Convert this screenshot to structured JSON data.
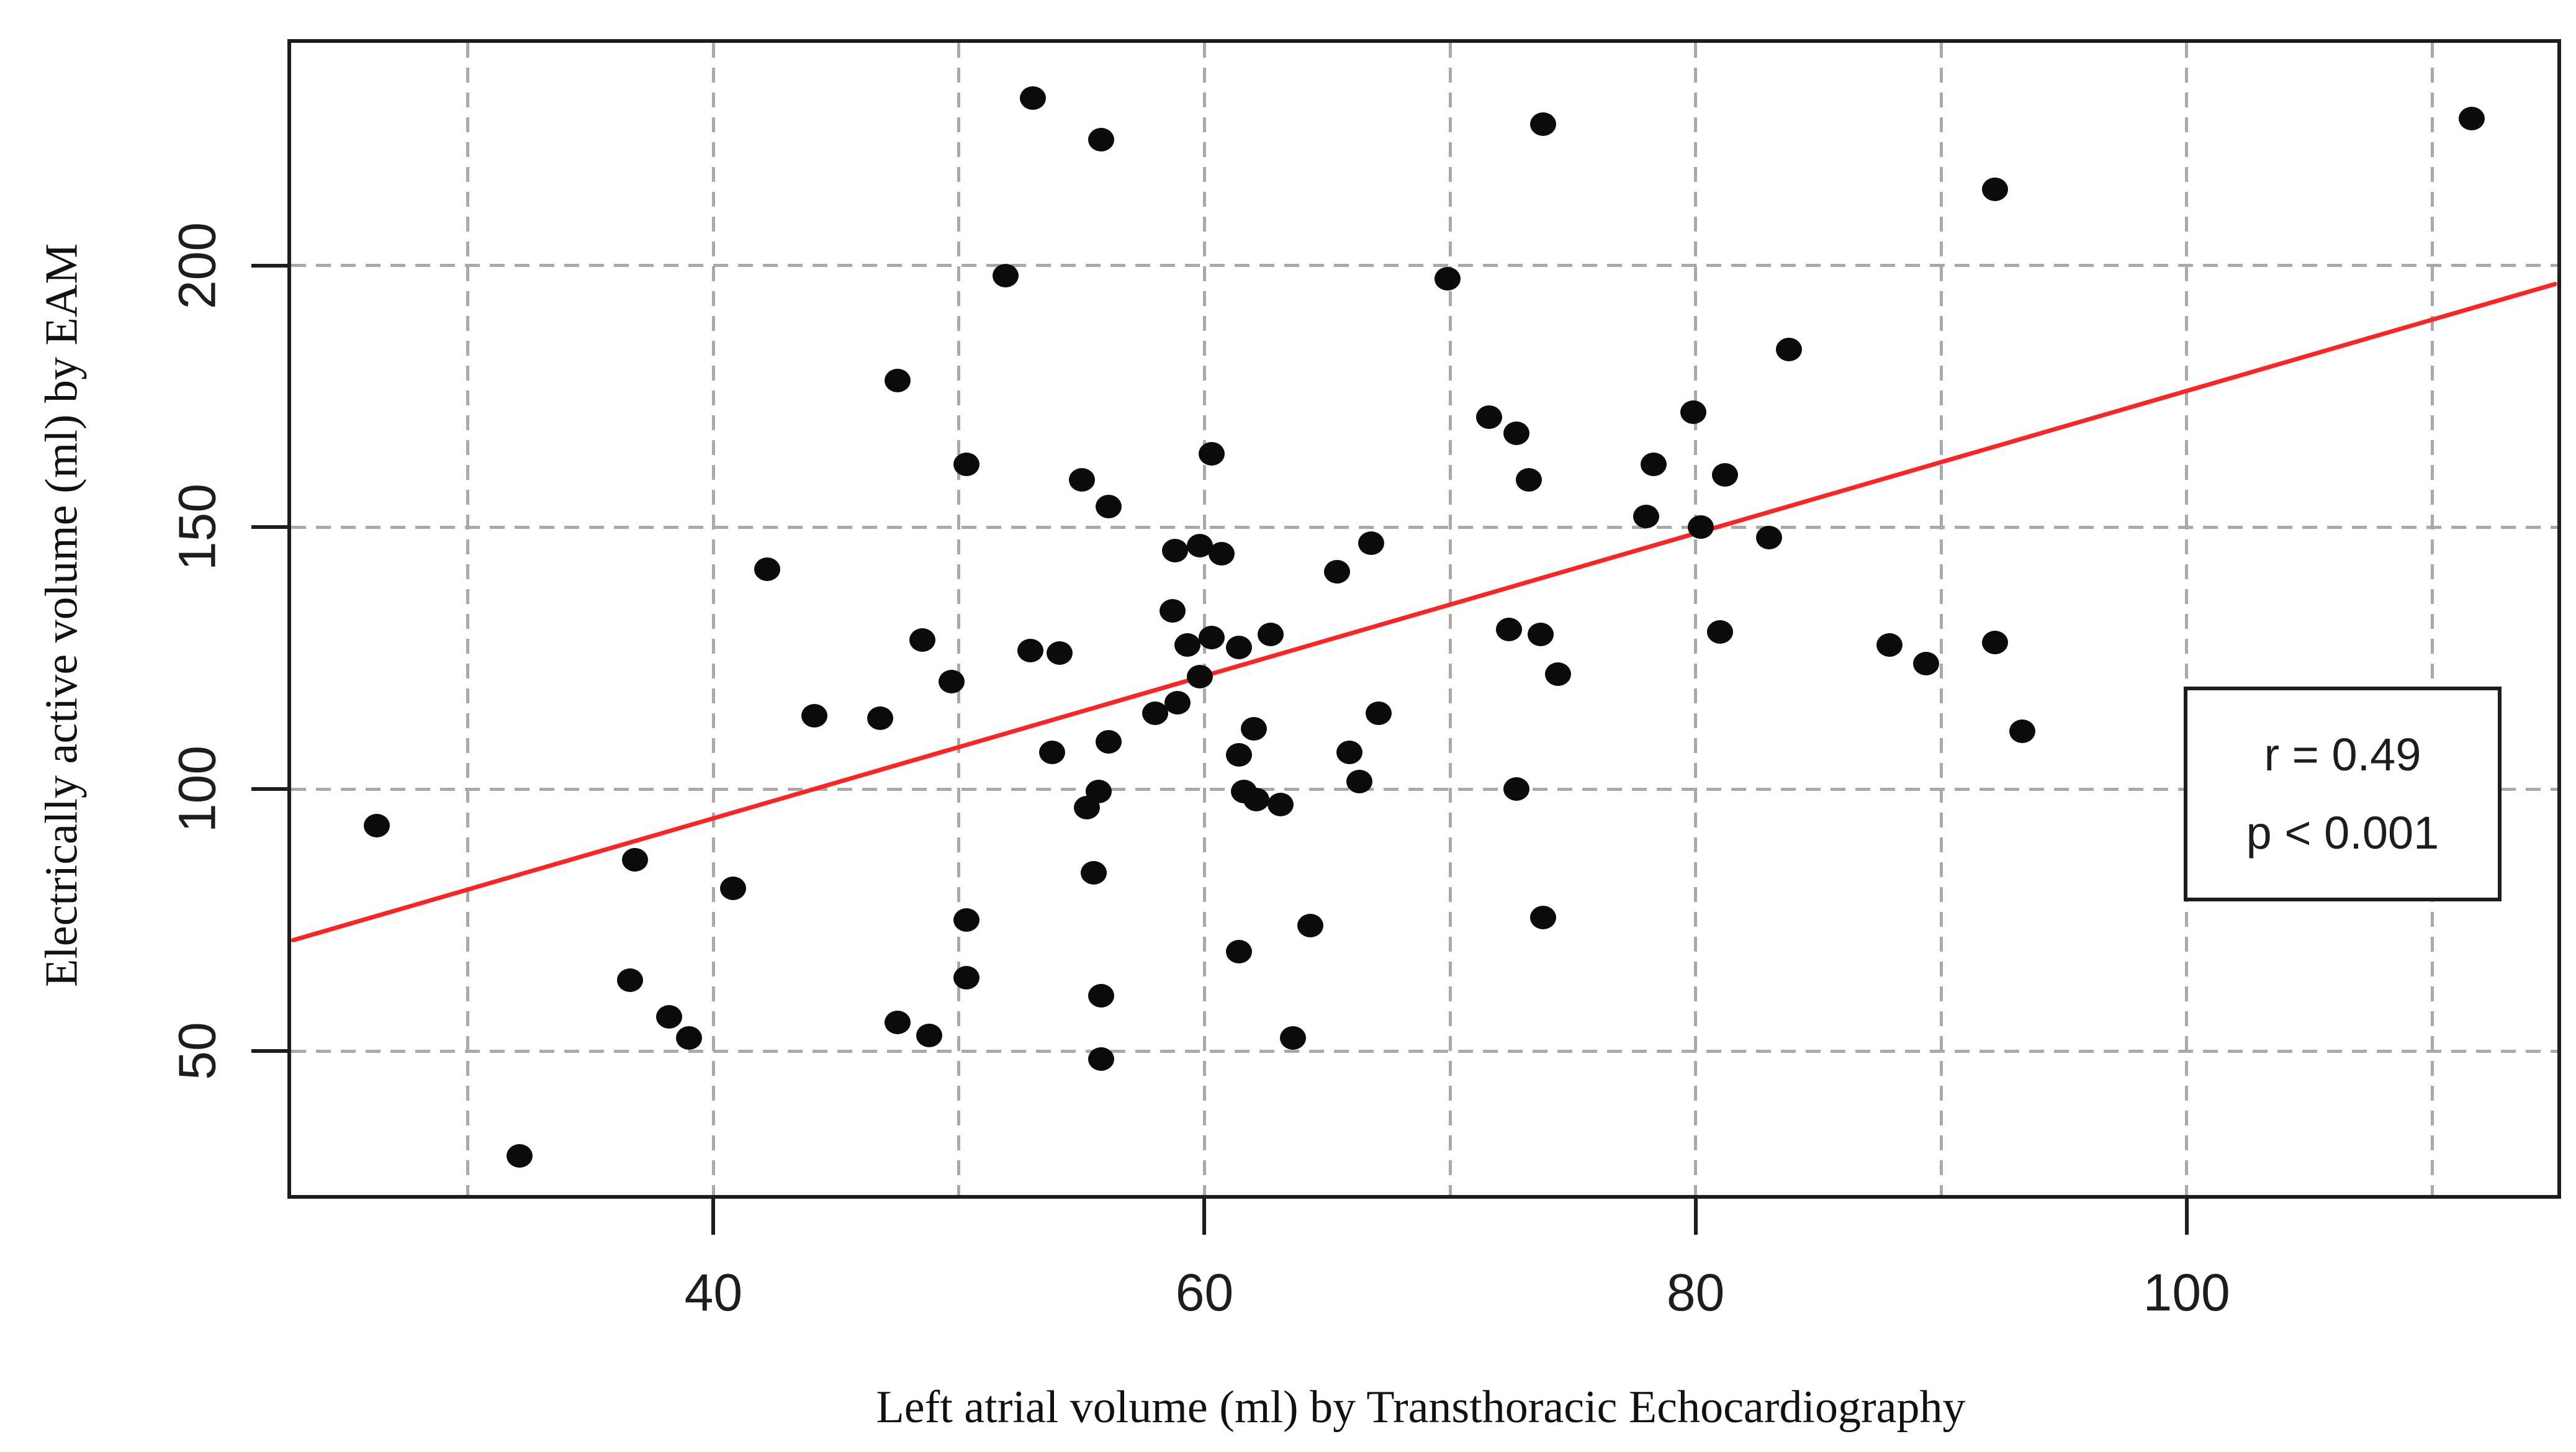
{
  "chart_data": {
    "type": "scatter",
    "title": "",
    "xlabel": "Left atrial volume (ml) by Transthoracic Echocardiography",
    "ylabel": "Electrically active volume (ml) by EAM",
    "xlim": [
      22.8,
      115.1
    ],
    "ylim": [
      22.5,
      242.5
    ],
    "x_ticks": [
      40,
      60,
      80,
      100
    ],
    "y_ticks": [
      50,
      100,
      150,
      200
    ],
    "x_gridlines": [
      30,
      40,
      50,
      60,
      70,
      80,
      90,
      100,
      110
    ],
    "y_gridlines": [
      50,
      100,
      150,
      200
    ],
    "grid": "dashed",
    "legend": "none",
    "points": [
      [
        26.3,
        93
      ],
      [
        32.1,
        30
      ],
      [
        36.6,
        63.5
      ],
      [
        36.8,
        86.5
      ],
      [
        38.2,
        56.5
      ],
      [
        39.0,
        52.5
      ],
      [
        40.8,
        81
      ],
      [
        42.2,
        142
      ],
      [
        44.1,
        114
      ],
      [
        46.8,
        113.5
      ],
      [
        47.5,
        178
      ],
      [
        47.5,
        55.5
      ],
      [
        48.5,
        128.5
      ],
      [
        48.8,
        53
      ],
      [
        49.7,
        120.5
      ],
      [
        50.3,
        162
      ],
      [
        50.3,
        75
      ],
      [
        50.3,
        64
      ],
      [
        51.9,
        198
      ],
      [
        52.9,
        126.5
      ],
      [
        53.0,
        232
      ],
      [
        53.8,
        107
      ],
      [
        54.1,
        126
      ],
      [
        55.0,
        159
      ],
      [
        55.2,
        96.5
      ],
      [
        55.5,
        84
      ],
      [
        55.7,
        99.5
      ],
      [
        55.8,
        224
      ],
      [
        55.8,
        60.5
      ],
      [
        55.8,
        48.5
      ],
      [
        56.1,
        154
      ],
      [
        56.1,
        109
      ],
      [
        58.0,
        114.5
      ],
      [
        58.7,
        134
      ],
      [
        58.8,
        145.5
      ],
      [
        58.9,
        116.5
      ],
      [
        59.3,
        127.5
      ],
      [
        59.8,
        146.5
      ],
      [
        59.8,
        121.5
      ],
      [
        60.3,
        164
      ],
      [
        60.3,
        129
      ],
      [
        60.7,
        145
      ],
      [
        61.4,
        127
      ],
      [
        61.4,
        106.5
      ],
      [
        61.4,
        69
      ],
      [
        61.6,
        99.5
      ],
      [
        62.0,
        111.5
      ],
      [
        62.1,
        98
      ],
      [
        62.7,
        129.5
      ],
      [
        63.1,
        97
      ],
      [
        63.6,
        52.5
      ],
      [
        64.3,
        74
      ],
      [
        65.4,
        141.5
      ],
      [
        65.9,
        107
      ],
      [
        66.3,
        101.5
      ],
      [
        66.8,
        147
      ],
      [
        67.1,
        114.5
      ],
      [
        69.9,
        197.5
      ],
      [
        71.6,
        171
      ],
      [
        72.7,
        168
      ],
      [
        72.4,
        130.5
      ],
      [
        72.7,
        100
      ],
      [
        73.2,
        159
      ],
      [
        73.8,
        227
      ],
      [
        73.8,
        75.5
      ],
      [
        73.7,
        129.5
      ],
      [
        74.4,
        122
      ],
      [
        78.0,
        152
      ],
      [
        78.3,
        162
      ],
      [
        79.9,
        172
      ],
      [
        80.2,
        150
      ],
      [
        81.2,
        160
      ],
      [
        81.0,
        130
      ],
      [
        83.0,
        148
      ],
      [
        83.8,
        184
      ],
      [
        87.9,
        127.5
      ],
      [
        89.4,
        124
      ],
      [
        92.2,
        214.5
      ],
      [
        92.2,
        128
      ],
      [
        93.3,
        111
      ],
      [
        111.6,
        228
      ]
    ],
    "regression_line": {
      "slope": 1.36,
      "intercept": 40.0,
      "x_start": 22.8,
      "x_end": 115.1
    },
    "annotation": {
      "r_label": "r = 0.49",
      "p_label": "p < 0.001"
    },
    "colors": {
      "point": "#0b0b0b",
      "regression": "#fb2525",
      "grid": "#a9a9a9",
      "axis": "#1d1d1d",
      "background": "#ffffff"
    }
  }
}
